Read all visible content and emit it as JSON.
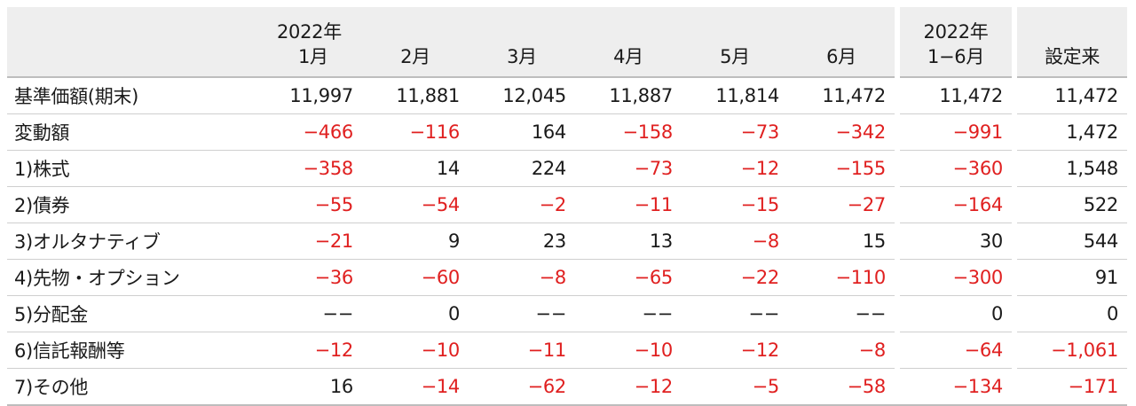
{
  "header": {
    "blank": "",
    "months": [
      {
        "top": "2022年",
        "bottom": "1月"
      },
      {
        "top": "",
        "bottom": "2月"
      },
      {
        "top": "",
        "bottom": "3月"
      },
      {
        "top": "",
        "bottom": "4月"
      },
      {
        "top": "",
        "bottom": "5月"
      },
      {
        "top": "",
        "bottom": "6月"
      }
    ],
    "ytd": {
      "top": "2022年",
      "bottom": "1−6月"
    },
    "since": "設定来"
  },
  "rows": [
    {
      "label": "基準価額(期末)",
      "values": [
        "11,997",
        "11,881",
        "12,045",
        "11,887",
        "11,814",
        "11,472"
      ],
      "ytd": "11,472",
      "since": "11,472"
    },
    {
      "label": "変動額",
      "values": [
        "−466",
        "−116",
        "164",
        "−158",
        "−73",
        "−342"
      ],
      "ytd": "−991",
      "since": "1,472"
    },
    {
      "label": "1)株式",
      "values": [
        "−358",
        "14",
        "224",
        "−73",
        "−12",
        "−155"
      ],
      "ytd": "−360",
      "since": "1,548"
    },
    {
      "label": "2)債券",
      "values": [
        "−55",
        "−54",
        "−2",
        "−11",
        "−15",
        "−27"
      ],
      "ytd": "−164",
      "since": "522"
    },
    {
      "label": "3)オルタナティブ",
      "values": [
        "−21",
        "9",
        "23",
        "13",
        "−8",
        "15"
      ],
      "ytd": "30",
      "since": "544"
    },
    {
      "label": "4)先物・オプション",
      "values": [
        "−36",
        "−60",
        "−8",
        "−65",
        "−22",
        "−110"
      ],
      "ytd": "−300",
      "since": "91"
    },
    {
      "label": "5)分配金",
      "values": [
        "−−",
        "0",
        "−−",
        "−−",
        "−−",
        "−−"
      ],
      "ytd": "0",
      "since": "0"
    },
    {
      "label": "6)信託報酬等",
      "values": [
        "−12",
        "−10",
        "−11",
        "−10",
        "−12",
        "−8"
      ],
      "ytd": "−64",
      "since": "−1,061"
    },
    {
      "label": "7)その他",
      "values": [
        "16",
        "−14",
        "−62",
        "−12",
        "−5",
        "−58"
      ],
      "ytd": "−134",
      "since": "−171"
    }
  ],
  "colors": {
    "negative": "#e02020",
    "header_bg": "#eeeeee",
    "text": "#1a1a1a"
  }
}
